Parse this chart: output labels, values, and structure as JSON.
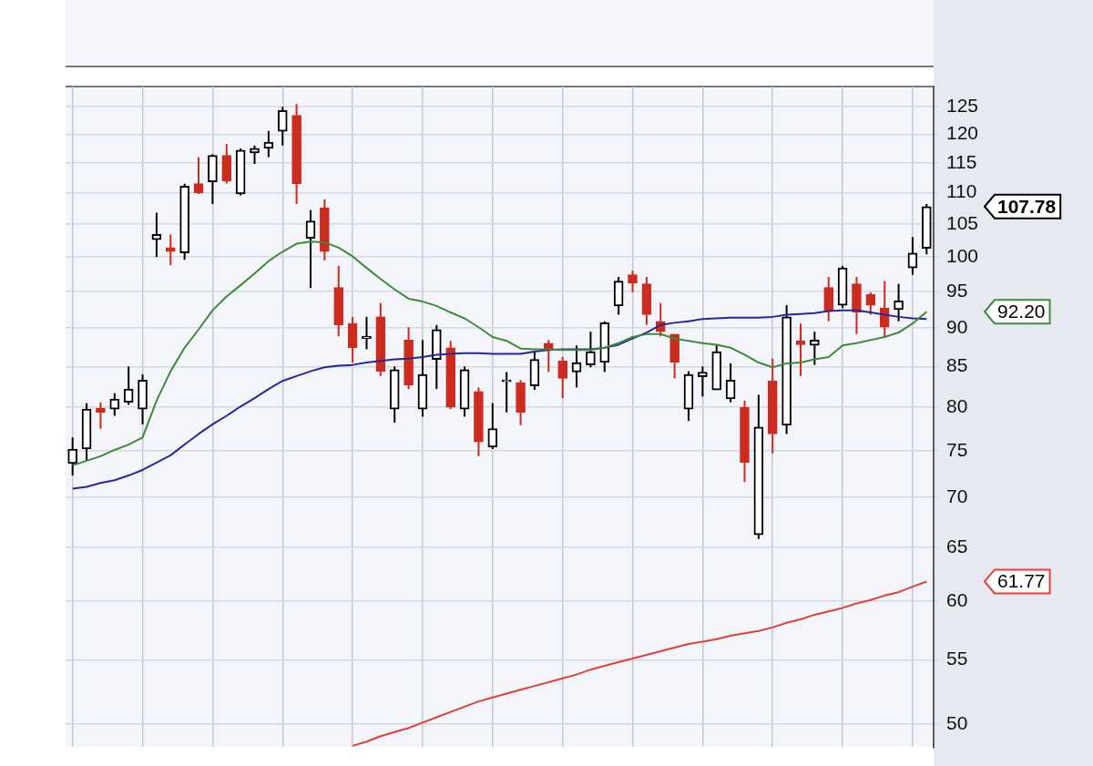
{
  "chart_data": {
    "type": "candlestick",
    "categories": [
      null,
      null,
      null,
      null,
      null,
      null,
      null,
      null,
      null,
      null,
      null,
      null,
      null,
      null,
      null,
      null,
      null,
      null,
      null,
      null,
      null,
      null,
      null,
      null,
      null,
      null,
      null,
      null,
      null,
      null,
      null,
      null,
      null,
      null,
      null,
      null,
      null,
      null,
      null,
      null,
      null,
      null,
      null,
      null,
      null,
      null,
      null,
      null,
      null,
      null,
      null,
      null,
      null,
      null,
      null,
      null,
      null,
      null,
      null,
      null,
      null,
      null
    ],
    "ohlc": [
      [
        73.6,
        76.5,
        72.3,
        75.2
      ],
      [
        75.2,
        80.5,
        73.9,
        79.8
      ],
      [
        79.9,
        80.6,
        77.5,
        79.4
      ],
      [
        79.8,
        81.7,
        79.0,
        81.0
      ],
      [
        80.6,
        85.0,
        80.3,
        82.2
      ],
      [
        79.8,
        84.0,
        78.0,
        83.3
      ],
      [
        102.6,
        106.8,
        100.0,
        103.4
      ],
      [
        101.4,
        103.4,
        98.8,
        100.8
      ],
      [
        100.6,
        111.5,
        99.6,
        111.1
      ],
      [
        111.5,
        116.0,
        109.8,
        110.0
      ],
      [
        111.8,
        116.5,
        108.2,
        116.3
      ],
      [
        116.3,
        118.3,
        111.5,
        111.9
      ],
      [
        109.8,
        117.5,
        109.6,
        117.2
      ],
      [
        116.7,
        118.0,
        114.8,
        117.5
      ],
      [
        117.5,
        120.6,
        116.0,
        118.6
      ],
      [
        120.5,
        125.0,
        118.0,
        124.3
      ],
      [
        123.4,
        125.5,
        108.2,
        111.5
      ],
      [
        102.8,
        107.2,
        95.5,
        105.5
      ],
      [
        107.6,
        108.9,
        99.5,
        100.8
      ],
      [
        95.6,
        98.7,
        88.9,
        90.4
      ],
      [
        90.6,
        91.5,
        85.5,
        87.4
      ],
      [
        88.6,
        91.5,
        87.2,
        88.9
      ],
      [
        91.5,
        93.4,
        83.8,
        84.4
      ],
      [
        79.8,
        85.0,
        78.2,
        84.6
      ],
      [
        88.4,
        90.1,
        82.2,
        82.7
      ],
      [
        79.8,
        88.4,
        78.9,
        84.0
      ],
      [
        85.9,
        90.4,
        82.2,
        89.8
      ],
      [
        87.4,
        88.3,
        79.8,
        80.0
      ],
      [
        79.8,
        85.0,
        78.9,
        84.6
      ],
      [
        81.9,
        82.4,
        74.4,
        76.0
      ],
      [
        75.4,
        80.5,
        75.2,
        77.5
      ],
      [
        83.1,
        84.3,
        79.4,
        83.3
      ],
      [
        83.0,
        83.3,
        77.9,
        79.4
      ],
      [
        82.6,
        86.9,
        82.1,
        85.9
      ],
      [
        88.0,
        88.4,
        84.3,
        87.1
      ],
      [
        85.7,
        86.2,
        81.1,
        83.5
      ],
      [
        84.3,
        87.7,
        82.4,
        85.5
      ],
      [
        85.2,
        89.5,
        84.9,
        86.9
      ],
      [
        85.5,
        90.9,
        84.3,
        90.7
      ],
      [
        93.0,
        97.1,
        91.8,
        96.5
      ],
      [
        97.4,
        98.0,
        94.9,
        96.2
      ],
      [
        96.1,
        97.1,
        90.4,
        91.8
      ],
      [
        90.9,
        93.4,
        88.9,
        89.5
      ],
      [
        89.2,
        89.2,
        83.5,
        85.5
      ],
      [
        79.8,
        84.4,
        78.4,
        84.0
      ],
      [
        83.7,
        85.0,
        81.3,
        84.3
      ],
      [
        82.1,
        87.8,
        82.1,
        86.9
      ],
      [
        81.0,
        85.4,
        80.6,
        83.3
      ],
      [
        80.0,
        80.8,
        71.6,
        73.7
      ],
      [
        66.2,
        81.5,
        65.8,
        77.7
      ],
      [
        83.2,
        86.0,
        74.7,
        76.9
      ],
      [
        77.9,
        93.1,
        76.9,
        91.5
      ],
      [
        88.3,
        90.6,
        83.8,
        87.8
      ],
      [
        87.7,
        89.5,
        85.2,
        88.4
      ],
      [
        95.6,
        97.1,
        90.9,
        92.4
      ],
      [
        93.1,
        98.7,
        92.7,
        98.4
      ],
      [
        96.1,
        97.1,
        89.2,
        92.1
      ],
      [
        94.6,
        94.9,
        91.8,
        93.1
      ],
      [
        92.7,
        96.5,
        88.8,
        90.1
      ],
      [
        92.5,
        96.1,
        90.9,
        93.7
      ],
      [
        98.4,
        103.0,
        97.4,
        100.6
      ],
      [
        101.3,
        108.2,
        100.4,
        107.78
      ]
    ],
    "colors": [
      "#000000",
      "#000000",
      "#cc2b1f",
      "#000000",
      "#000000",
      "#000000",
      "#000000",
      "#cc2b1f",
      "#000000",
      "#cc2b1f",
      "#000000",
      "#cc2b1f",
      "#000000",
      "#000000",
      "#000000",
      "#000000",
      "#cc2b1f",
      "#000000",
      "#cc2b1f",
      "#cc2b1f",
      "#cc2b1f",
      "#000000",
      "#cc2b1f",
      "#000000",
      "#cc2b1f",
      "#000000",
      "#000000",
      "#cc2b1f",
      "#000000",
      "#cc2b1f",
      "#000000",
      "#000000",
      "#cc2b1f",
      "#000000",
      "#cc2b1f",
      "#cc2b1f",
      "#000000",
      "#000000",
      "#000000",
      "#000000",
      "#cc2b1f",
      "#cc2b1f",
      "#cc2b1f",
      "#cc2b1f",
      "#000000",
      "#000000",
      "#000000",
      "#000000",
      "#cc2b1f",
      "#000000",
      "#cc2b1f",
      "#000000",
      "#cc2b1f",
      "#000000",
      "#cc2b1f",
      "#000000",
      "#cc2b1f",
      "#cc2b1f",
      "#cc2b1f",
      "#000000",
      "#000000",
      "#000000"
    ],
    "series": [
      {
        "type": "line",
        "color": "#3f8a3a",
        "values": [
          73.4,
          73.9,
          74.4,
          75.1,
          75.7,
          76.5,
          80.8,
          84.4,
          87.4,
          89.8,
          92.4,
          94.3,
          95.9,
          97.6,
          99.4,
          100.8,
          102.0,
          102.3,
          102.2,
          101.4,
          100.1,
          98.4,
          96.8,
          95.3,
          94.0,
          93.6,
          93.0,
          92.1,
          91.3,
          90.1,
          88.8,
          88.3,
          87.3,
          87.2,
          87.2,
          87.1,
          87.1,
          87.1,
          87.4,
          88.0,
          88.8,
          89.2,
          89.2,
          88.6,
          88.3,
          88.0,
          87.8,
          87.4,
          86.5,
          85.5,
          84.9,
          85.4,
          85.5,
          85.9,
          86.2,
          87.7,
          88.0,
          88.4,
          88.8,
          89.4,
          90.6,
          92.2
        ]
      },
      {
        "type": "line",
        "color": "#27279a",
        "values": [
          70.9,
          71.1,
          71.5,
          71.8,
          72.3,
          72.9,
          73.7,
          74.5,
          75.7,
          76.9,
          78.0,
          79.0,
          80.1,
          81.1,
          82.2,
          83.2,
          83.8,
          84.4,
          84.9,
          85.1,
          85.2,
          85.5,
          85.7,
          85.9,
          86.0,
          86.2,
          86.5,
          86.6,
          86.7,
          86.7,
          86.6,
          86.6,
          86.6,
          86.9,
          87.1,
          87.2,
          87.2,
          87.2,
          87.4,
          87.8,
          88.6,
          89.4,
          90.4,
          90.7,
          90.9,
          91.2,
          91.3,
          91.4,
          91.4,
          91.4,
          91.5,
          91.8,
          91.9,
          92.0,
          92.3,
          92.4,
          92.4,
          92.1,
          91.8,
          91.5,
          91.3,
          91.2
        ]
      },
      {
        "type": "line",
        "color": "#e0403a",
        "values": [
          null,
          null,
          null,
          null,
          null,
          null,
          null,
          null,
          null,
          null,
          null,
          null,
          null,
          null,
          null,
          null,
          null,
          null,
          null,
          null,
          48.4,
          48.7,
          49.1,
          49.4,
          49.7,
          50.1,
          50.5,
          50.9,
          51.3,
          51.7,
          52.0,
          52.3,
          52.6,
          52.9,
          53.2,
          53.5,
          53.8,
          54.2,
          54.5,
          54.8,
          55.1,
          55.4,
          55.7,
          56.0,
          56.3,
          56.5,
          56.7,
          57.0,
          57.2,
          57.4,
          57.7,
          58.1,
          58.4,
          58.8,
          59.1,
          59.4,
          59.8,
          60.1,
          60.5,
          60.8,
          61.3,
          61.77
        ]
      }
    ],
    "ylim": [
      48.3,
      128.8
    ],
    "yticks": [
      50,
      55,
      60,
      65,
      70,
      75,
      80,
      85,
      90,
      95,
      100,
      105,
      110,
      115,
      120,
      125
    ],
    "log": true,
    "grid": true,
    "annotations": [
      "107.78",
      "92.20",
      "61.77"
    ]
  }
}
